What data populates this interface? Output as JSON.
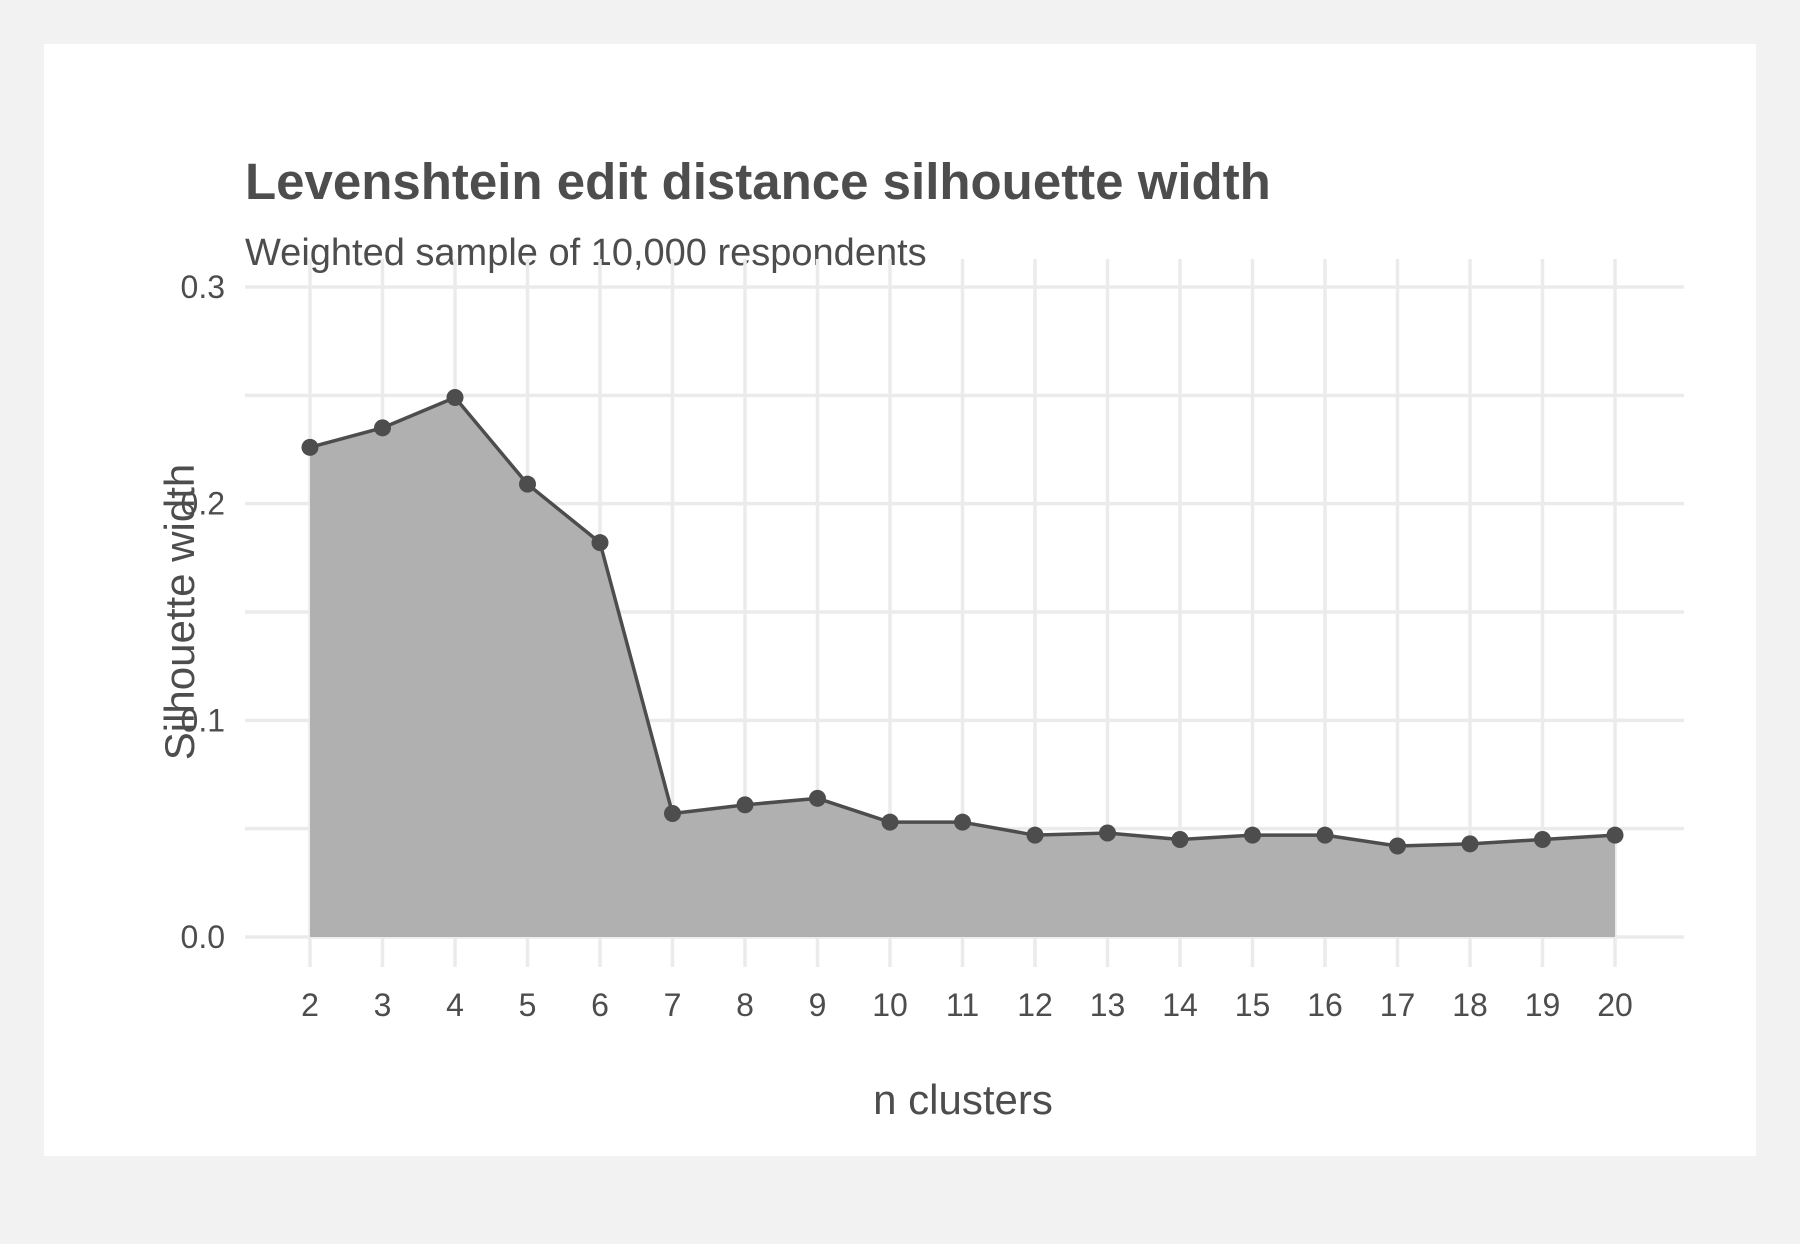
{
  "chart_data": {
    "type": "area",
    "title": "Levenshtein edit distance silhouette width",
    "subtitle": "Weighted sample of 10,000 respondents",
    "xlabel": "n clusters",
    "ylabel": "Silhouette width",
    "x": [
      2,
      3,
      4,
      5,
      6,
      7,
      8,
      9,
      10,
      11,
      12,
      13,
      14,
      15,
      16,
      17,
      18,
      19,
      20
    ],
    "y": [
      0.226,
      0.235,
      0.249,
      0.209,
      0.182,
      0.057,
      0.061,
      0.064,
      0.053,
      0.053,
      0.047,
      0.048,
      0.045,
      0.047,
      0.047,
      0.042,
      0.043,
      0.045,
      0.047
    ],
    "xlim": [
      2,
      20
    ],
    "ylim": [
      0,
      0.3
    ],
    "yticks": [
      "0.0",
      "0.1",
      "0.2",
      "0.3"
    ],
    "xticks": [
      "2",
      "3",
      "4",
      "5",
      "6",
      "7",
      "8",
      "9",
      "10",
      "11",
      "12",
      "13",
      "14",
      "15",
      "16",
      "17",
      "18",
      "19",
      "20"
    ],
    "grid": true,
    "legend": "none",
    "colors": {
      "area": "#adadad",
      "line": "#4d4d4d",
      "grid": "#ebebeb",
      "text": "#4d4d4d"
    }
  }
}
